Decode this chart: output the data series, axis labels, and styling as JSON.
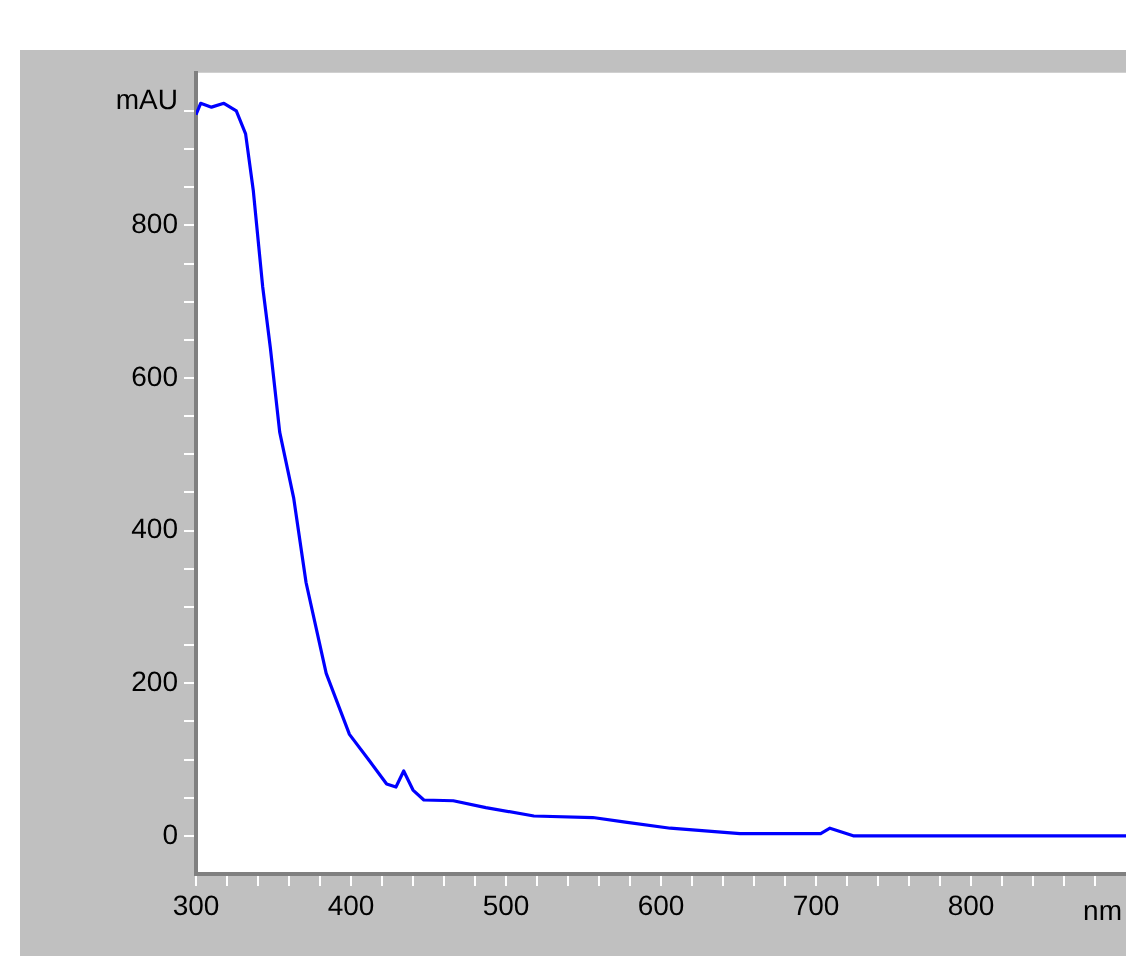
{
  "chart_data": {
    "type": "line",
    "xlabel": "nm",
    "ylabel": "mAU",
    "marker": "none",
    "grid": false,
    "legend": false,
    "series": [
      {
        "color": "#0000ff",
        "x": [
          300,
          303,
          310,
          318,
          326,
          332,
          337,
          343,
          348,
          354,
          363,
          371,
          384,
          399,
          412,
          423,
          429,
          434,
          440,
          447,
          466,
          487,
          518,
          556,
          577,
          606,
          651,
          703,
          709,
          724,
          900
        ],
        "values": [
          945,
          960,
          955,
          960,
          950,
          920,
          845,
          720,
          639,
          529,
          443,
          332,
          213,
          133,
          98,
          68,
          64,
          85,
          60,
          47,
          46,
          37,
          26,
          24,
          18,
          10,
          3,
          3,
          10,
          0,
          0
        ]
      }
    ],
    "xlim": [
      300,
      900
    ],
    "xticks": [
      300,
      {
        "value": 320,
        "label": null
      },
      {
        "value": 340,
        "label": null
      },
      {
        "value": 360,
        "label": null
      },
      {
        "value": 380,
        "label": null
      },
      400,
      {
        "value": 420,
        "label": null
      },
      {
        "value": 440,
        "label": null
      },
      {
        "value": 460,
        "label": null
      },
      {
        "value": 480,
        "label": null
      },
      500,
      {
        "value": 520,
        "label": null
      },
      {
        "value": 540,
        "label": null
      },
      {
        "value": 560,
        "label": null
      },
      {
        "value": 580,
        "label": null
      },
      600,
      {
        "value": 620,
        "label": null
      },
      {
        "value": 640,
        "label": null
      },
      {
        "value": 660,
        "label": null
      },
      {
        "value": 680,
        "label": null
      },
      700,
      {
        "value": 720,
        "label": null
      },
      {
        "value": 740,
        "label": null
      },
      {
        "value": 760,
        "label": null
      },
      {
        "value": 780,
        "label": null
      },
      800,
      {
        "value": 820,
        "label": null
      },
      {
        "value": 840,
        "label": null
      },
      {
        "value": 860,
        "label": null
      },
      {
        "value": 880,
        "label": null
      }
    ],
    "ylim": [
      -50,
      1000
    ],
    "yticks": [
      0,
      {
        "value": 50,
        "label": null
      },
      {
        "value": 100,
        "label": null
      },
      {
        "value": 150,
        "label": null
      },
      200,
      {
        "value": 250,
        "label": null
      },
      {
        "value": 300,
        "label": null
      },
      {
        "value": 350,
        "label": null
      },
      400,
      {
        "value": 450,
        "label": null
      },
      {
        "value": 500,
        "label": null
      },
      {
        "value": 550,
        "label": null
      },
      600,
      {
        "value": 650,
        "label": null
      },
      {
        "value": 700,
        "label": null
      },
      {
        "value": 750,
        "label": null
      },
      800,
      {
        "value": 850,
        "label": null
      },
      {
        "value": 900,
        "label": null
      },
      {
        "value": 950,
        "label": null
      }
    ]
  }
}
